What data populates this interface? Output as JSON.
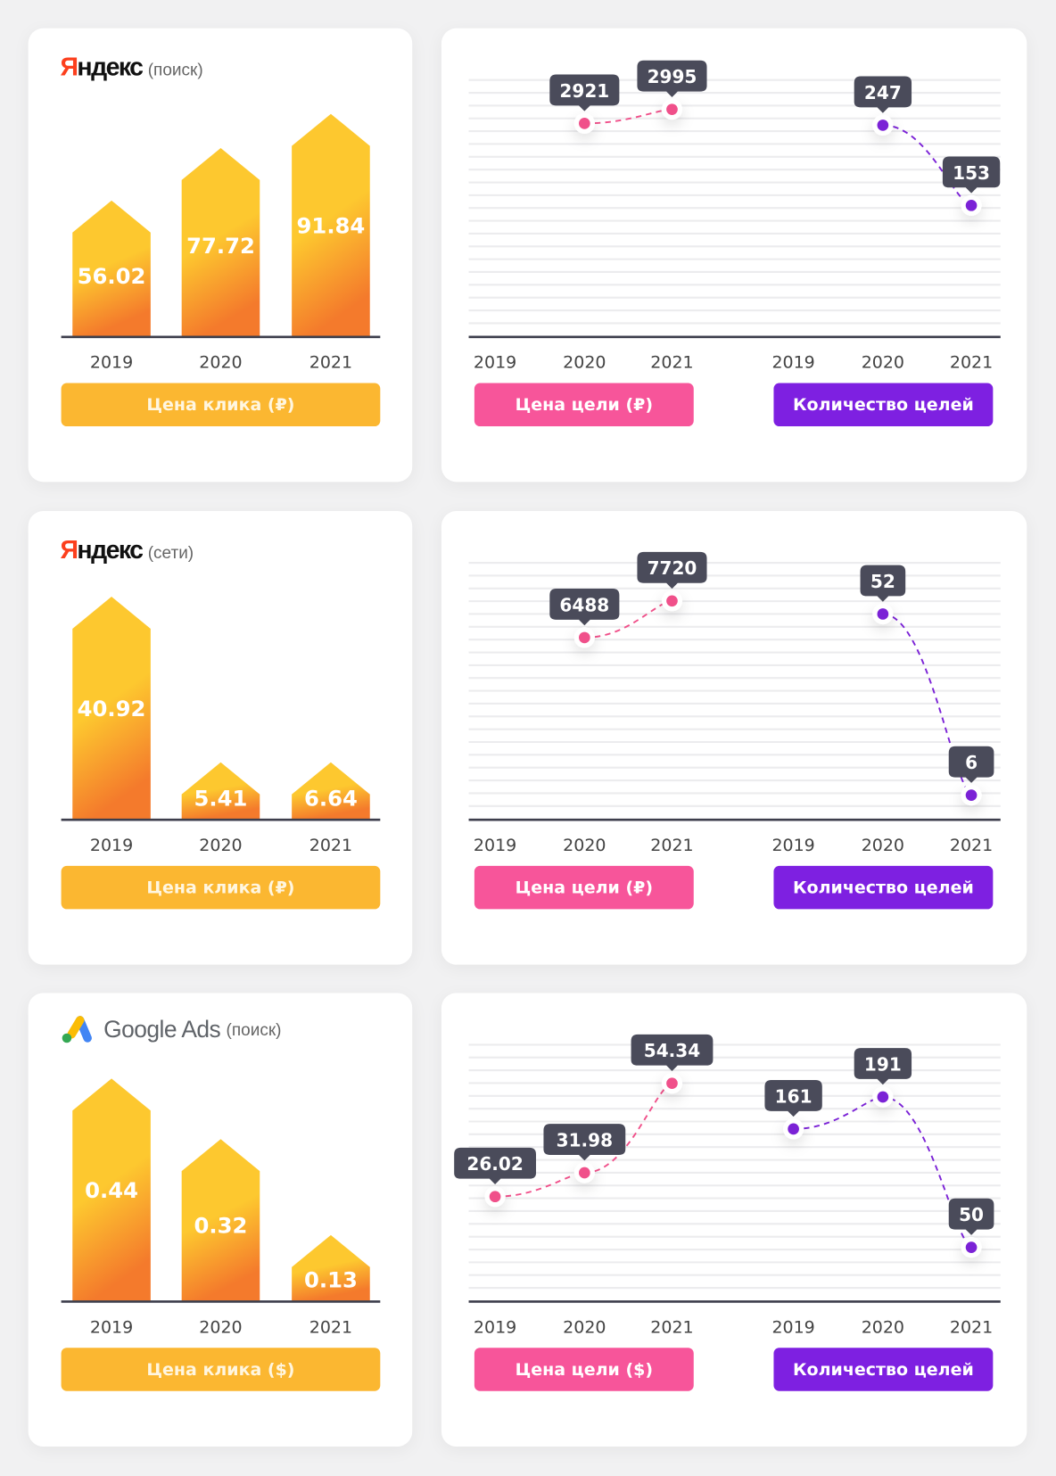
{
  "colors": {
    "bar_top": "#fdc82f",
    "bar_bottom": "#f47a2c",
    "pink": "#f0508a",
    "purple": "#7b22d6",
    "tooltip": "#4a4b5a",
    "axis": "#3d3e4c",
    "grid": "#ececee"
  },
  "years": [
    "2019",
    "2020",
    "2021"
  ],
  "rows": [
    {
      "platform": {
        "brand_first": "Я",
        "brand_rest": "ндекс",
        "label": "(поиск)"
      },
      "click_button": "Цена клика (₽)",
      "goal_price_button": "Цена цели (₽)",
      "goal_count_button": "Количество целей"
    },
    {
      "platform": {
        "brand_first": "Я",
        "brand_rest": "ндекс",
        "label": "(сети)"
      },
      "click_button": "Цена клика (₽)",
      "goal_price_button": "Цена цели (₽)",
      "goal_count_button": "Количество целей"
    },
    {
      "platform": {
        "brand": "Google Ads",
        "label": "(поиск)"
      },
      "click_button": "Цена клика ($)",
      "goal_price_button": "Цена цели ($)",
      "goal_count_button": "Количество целей"
    }
  ],
  "chart_data": [
    {
      "type": "bar",
      "title": "Яндекс (поиск) — Цена клика (₽)",
      "categories": [
        "2019",
        "2020",
        "2021"
      ],
      "values": [
        56.02,
        77.72,
        91.84
      ],
      "labels": [
        "56.02",
        "77.72",
        "91.84"
      ]
    },
    {
      "type": "line",
      "title": "Яндекс (поиск) — Цена цели (₽)",
      "categories": [
        "2019",
        "2020",
        "2021"
      ],
      "values": [
        null,
        2921,
        2995
      ],
      "labels": [
        "",
        "2921",
        "2995"
      ],
      "ylim": [
        1800,
        3150
      ]
    },
    {
      "type": "line",
      "title": "Яндекс (поиск) — Количество целей",
      "categories": [
        "2019",
        "2020",
        "2021"
      ],
      "values": [
        null,
        247,
        153
      ],
      "labels": [
        "",
        "247",
        "153"
      ],
      "ylim": [
        0,
        300
      ]
    },
    {
      "type": "bar",
      "title": "Яндекс (сети) — Цена клика (₽)",
      "categories": [
        "2019",
        "2020",
        "2021"
      ],
      "values": [
        40.92,
        5.41,
        6.64
      ],
      "labels": [
        "40.92",
        "5.41",
        "6.64"
      ]
    },
    {
      "type": "line",
      "title": "Яндекс (сети) — Цена цели (₽)",
      "categories": [
        "2019",
        "2020",
        "2021"
      ],
      "values": [
        null,
        6488,
        7720
      ],
      "labels": [
        "",
        "6488",
        "7720"
      ],
      "ylim": [
        400,
        9000
      ]
    },
    {
      "type": "line",
      "title": "Яндекс (сети) — Количество целей",
      "categories": [
        "2019",
        "2020",
        "2021"
      ],
      "values": [
        null,
        52,
        6
      ],
      "labels": [
        "",
        "52",
        "6"
      ],
      "ylim": [
        0,
        65
      ]
    },
    {
      "type": "bar",
      "title": "Google Ads (поиск) — Цена клика ($)",
      "categories": [
        "2019",
        "2020",
        "2021"
      ],
      "values": [
        0.44,
        0.32,
        0.13
      ],
      "labels": [
        "0.44",
        "0.32",
        "0.13"
      ]
    },
    {
      "type": "line",
      "title": "Google Ads (поиск) — Цена цели ($)",
      "categories": [
        "2019",
        "2020",
        "2021"
      ],
      "values": [
        26.02,
        31.98,
        54.34
      ],
      "labels": [
        "26.02",
        "31.98",
        "54.34"
      ],
      "ylim": [
        0,
        64
      ]
    },
    {
      "type": "line",
      "title": "Google Ads (поиск) — Количество целей",
      "categories": [
        "2019",
        "2020",
        "2021"
      ],
      "values": [
        161,
        191,
        50
      ],
      "labels": [
        "161",
        "191",
        "50"
      ],
      "ylim": [
        0,
        240
      ]
    }
  ]
}
